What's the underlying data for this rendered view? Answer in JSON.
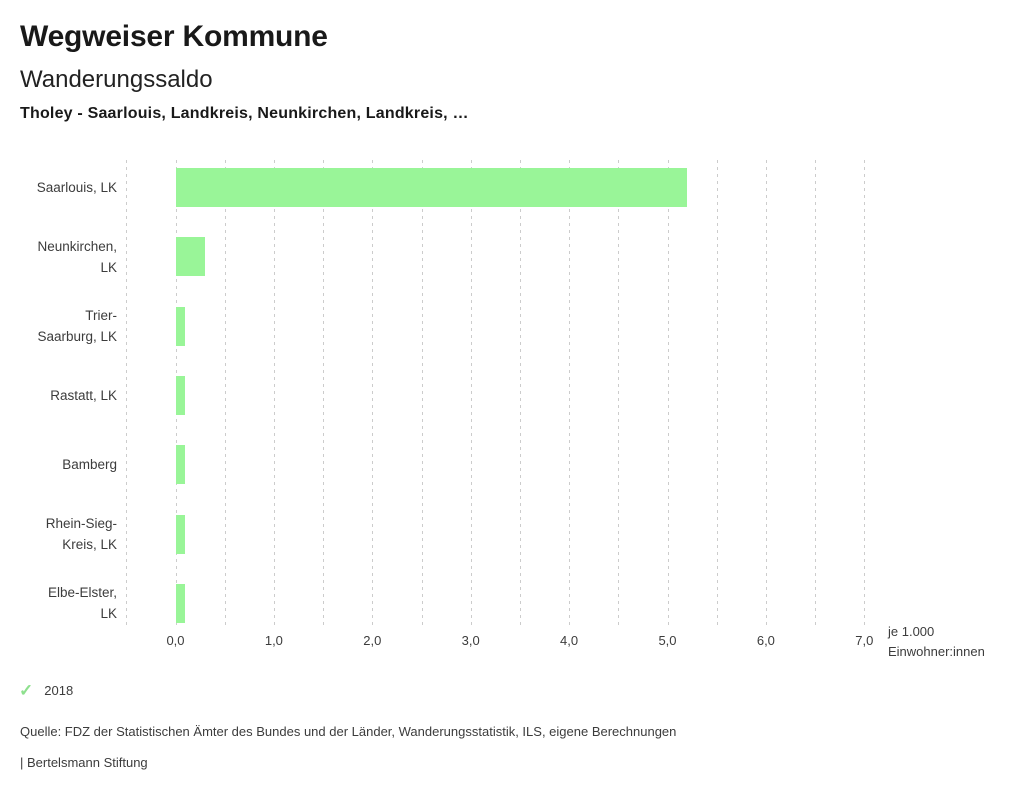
{
  "header": {
    "app_title": "Wegweiser Kommune",
    "chart_title": "Wanderungssaldo",
    "selection": "Tholey - Saarlouis, Landkreis, Neunkirchen, Landkreis, …"
  },
  "chart_data": {
    "type": "bar",
    "orientation": "horizontal",
    "title": "Wanderungssaldo",
    "categories": [
      "Saarlouis, LK",
      "Neunkirchen, LK",
      "Trier-Saarburg, LK",
      "Rastatt, LK",
      "Bamberg",
      "Rhein-Sieg-Kreis, LK",
      "Elbe-Elster, LK"
    ],
    "label_lines": [
      [
        "Saarlouis, LK"
      ],
      [
        "Neunkirchen,",
        "LK"
      ],
      [
        "Trier-",
        "Saarburg, LK"
      ],
      [
        "Rastatt, LK"
      ],
      [
        "Bamberg"
      ],
      [
        "Rhein-Sieg-",
        "Kreis, LK"
      ],
      [
        "Elbe-Elster,",
        "LK"
      ]
    ],
    "values": [
      5.2,
      0.3,
      0.1,
      0.1,
      0.1,
      0.1,
      0.1
    ],
    "series": [
      {
        "name": "2018",
        "values": [
          5.2,
          0.3,
          0.1,
          0.1,
          0.1,
          0.1,
          0.1
        ]
      }
    ],
    "xlabel": "je 1.000 Einwohner:innen",
    "unit_label_lines": [
      "je 1.000",
      "Einwohner:innen"
    ],
    "xlim": [
      -0.5,
      7.0
    ],
    "grid_step": 0.5,
    "grid": true,
    "tick_values": [
      0,
      1,
      2,
      3,
      4,
      5,
      6,
      7
    ],
    "tick_labels": [
      "0,0",
      "1,0",
      "2,0",
      "3,0",
      "4,0",
      "5,0",
      "6,0",
      "7,0"
    ],
    "bar_color": "#99f598",
    "grid_color": "#cccccc",
    "legend_position": "bottom"
  },
  "legend": {
    "items": [
      {
        "label": "2018",
        "checked": true
      }
    ],
    "check_color": "#8ee08e"
  },
  "footer": {
    "source": "Quelle: FDZ der Statistischen Ämter des Bundes und der Länder, Wanderungsstatistik, ILS, eigene Berechnungen",
    "attribution": "| Bertelsmann Stiftung"
  }
}
